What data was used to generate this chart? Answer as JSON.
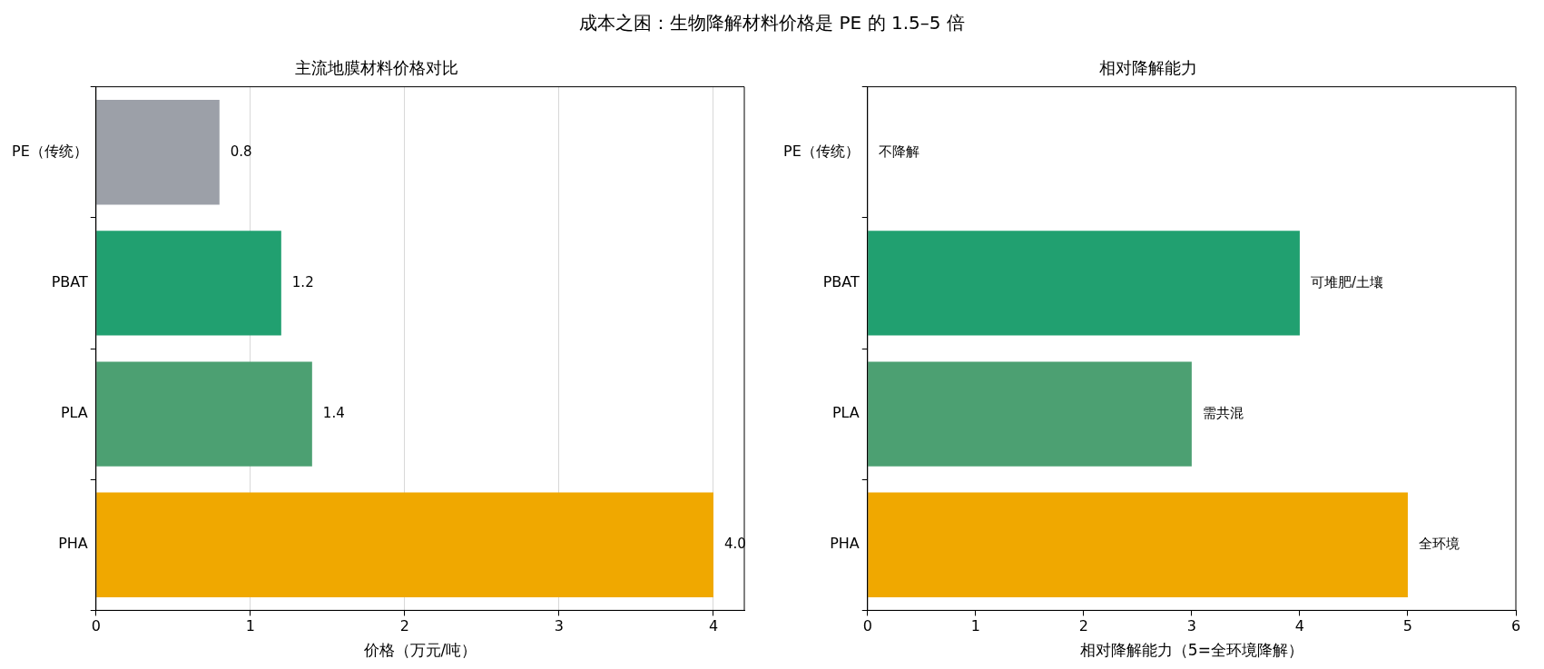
{
  "chart_data": [
    {
      "type": "other",
      "title": "成本之困：生物降解材料价格是 PE 的 1.5–5 倍"
    },
    {
      "type": "bar",
      "orientation": "horizontal",
      "title": "主流地膜材料价格对比",
      "xlabel": "价格（万元/吨）",
      "categories": [
        "PE（传统）",
        "PBAT",
        "PLA",
        "PHA"
      ],
      "values": [
        0.8,
        1.2,
        1.4,
        4.0
      ],
      "colors": [
        "#9ca0a8",
        "#21a070",
        "#4ca072",
        "#f0a800"
      ],
      "value_labels": [
        "0.8",
        "1.2",
        "1.4",
        "4.0"
      ],
      "xlim": [
        0,
        4.2
      ],
      "xticks": [
        0,
        1,
        2,
        3,
        4
      ],
      "grid": "x"
    },
    {
      "type": "bar",
      "orientation": "horizontal",
      "title": "相对降解能力",
      "xlabel": "相对降解能力（5=全环境降解）",
      "categories": [
        "PE（传统）",
        "PBAT",
        "PLA",
        "PHA"
      ],
      "values": [
        0,
        4,
        3,
        5
      ],
      "colors": [
        "#9ca0a8",
        "#21a070",
        "#4ca072",
        "#f0a800"
      ],
      "value_labels": [
        "不降解",
        "可堆肥/土壤",
        "需共混",
        "全环境"
      ],
      "xlim": [
        0,
        6
      ],
      "xticks": [
        0,
        1,
        2,
        3,
        4,
        5,
        6
      ],
      "grid": false
    }
  ]
}
